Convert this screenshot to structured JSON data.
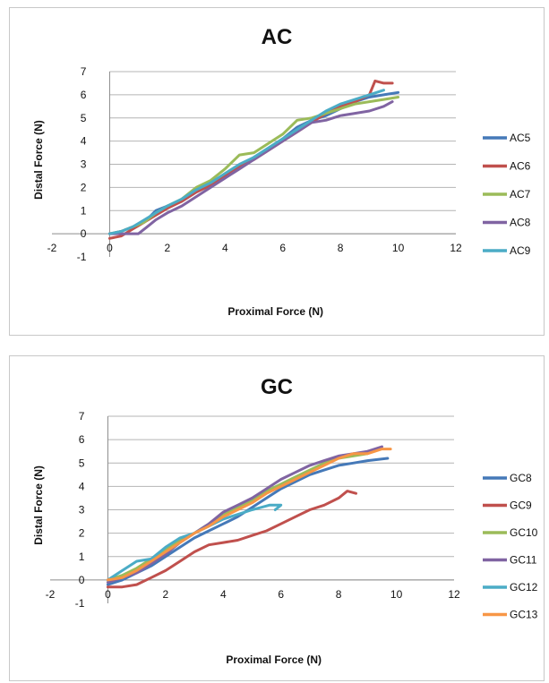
{
  "chart_data": [
    {
      "type": "line",
      "title": "AC",
      "xlabel": "Proximal Force (N)",
      "ylabel": "Distal Force (N)",
      "xlim": [
        -2,
        12
      ],
      "ylim": [
        -1,
        7
      ],
      "xticks": [
        -2,
        0,
        2,
        4,
        6,
        8,
        10,
        12
      ],
      "yticks": [
        -1,
        0,
        1,
        2,
        3,
        4,
        5,
        6,
        7
      ],
      "grid": true,
      "legend": "right",
      "series": [
        {
          "name": "AC5",
          "color": "#4579b8",
          "x": [
            0,
            0.4,
            0.8,
            1.2,
            1.6,
            2.0,
            2.5,
            3.0,
            3.5,
            4.0,
            4.5,
            5.0,
            5.5,
            6.0,
            6.5,
            7.0,
            7.5,
            8.0,
            8.5,
            9.0,
            9.5,
            10.0
          ],
          "y": [
            0,
            0.1,
            0.3,
            0.5,
            1.0,
            1.2,
            1.4,
            1.8,
            2.1,
            2.5,
            2.9,
            3.3,
            3.7,
            4.1,
            4.6,
            4.9,
            5.1,
            5.4,
            5.7,
            5.9,
            6.0,
            6.1
          ]
        },
        {
          "name": "AC6",
          "color": "#c0504d",
          "x": [
            0,
            0.4,
            0.8,
            1.2,
            1.6,
            2.0,
            2.5,
            3.0,
            3.5,
            4.0,
            4.5,
            5.0,
            5.5,
            6.0,
            6.5,
            7.0,
            7.5,
            8.0,
            8.5,
            9.0,
            9.2,
            9.5,
            9.8
          ],
          "y": [
            -0.2,
            -0.1,
            0.2,
            0.5,
            0.8,
            1.1,
            1.4,
            1.8,
            2.1,
            2.5,
            2.9,
            3.2,
            3.6,
            4.0,
            4.4,
            4.8,
            5.2,
            5.5,
            5.7,
            6.0,
            6.6,
            6.5,
            6.5
          ]
        },
        {
          "name": "AC7",
          "color": "#9bbb59",
          "x": [
            0,
            0.4,
            0.8,
            1.2,
            1.6,
            2.0,
            2.5,
            3.0,
            3.5,
            4.0,
            4.5,
            5.0,
            5.5,
            6.0,
            6.5,
            7.0,
            7.5,
            8.0,
            8.5,
            9.0,
            9.5,
            10.0
          ],
          "y": [
            0,
            0.1,
            0.3,
            0.5,
            0.9,
            1.2,
            1.5,
            2.0,
            2.3,
            2.8,
            3.4,
            3.5,
            3.9,
            4.3,
            4.9,
            5.0,
            5.2,
            5.4,
            5.6,
            5.7,
            5.8,
            5.9
          ]
        },
        {
          "name": "AC8",
          "color": "#8064a2",
          "x": [
            0,
            0.5,
            1.0,
            1.3,
            1.6,
            2.0,
            2.5,
            3.0,
            3.5,
            4.0,
            4.5,
            5.0,
            5.5,
            6.0,
            6.5,
            7.0,
            7.5,
            8.0,
            8.5,
            9.0,
            9.5,
            9.8
          ],
          "y": [
            0,
            0,
            0,
            0.3,
            0.6,
            0.9,
            1.2,
            1.6,
            2.0,
            2.4,
            2.8,
            3.2,
            3.6,
            4.0,
            4.4,
            4.8,
            4.9,
            5.1,
            5.2,
            5.3,
            5.5,
            5.7
          ]
        },
        {
          "name": "AC9",
          "color": "#4bacc6",
          "x": [
            0,
            0.4,
            0.8,
            1.2,
            1.6,
            2.0,
            2.5,
            3.0,
            3.5,
            4.0,
            4.5,
            5.0,
            5.5,
            6.0,
            6.5,
            7.0,
            7.5,
            8.0,
            8.5,
            9.0,
            9.5
          ],
          "y": [
            0,
            0.1,
            0.3,
            0.6,
            0.9,
            1.2,
            1.5,
            1.9,
            2.2,
            2.6,
            3.0,
            3.3,
            3.7,
            4.1,
            4.5,
            4.9,
            5.3,
            5.6,
            5.8,
            6.0,
            6.2
          ]
        }
      ]
    },
    {
      "type": "line",
      "title": "GC",
      "xlabel": "Proximal Force (N)",
      "ylabel": "Distal Force (N)",
      "xlim": [
        -2,
        12
      ],
      "ylim": [
        -1,
        7
      ],
      "xticks": [
        -2,
        0,
        2,
        4,
        6,
        8,
        10,
        12
      ],
      "yticks": [
        -1,
        0,
        1,
        2,
        3,
        4,
        5,
        6,
        7
      ],
      "grid": true,
      "legend": "right",
      "series": [
        {
          "name": "GC8",
          "color": "#4579b8",
          "x": [
            0,
            0.5,
            1.0,
            1.5,
            2.0,
            2.5,
            3.0,
            3.5,
            4.0,
            4.5,
            5.0,
            5.5,
            6.0,
            6.5,
            7.0,
            7.5,
            8.0,
            8.5,
            9.0,
            9.7
          ],
          "y": [
            -0.2,
            0,
            0.3,
            0.6,
            1.0,
            1.4,
            1.8,
            2.1,
            2.4,
            2.7,
            3.1,
            3.5,
            3.9,
            4.2,
            4.5,
            4.7,
            4.9,
            5.0,
            5.1,
            5.2
          ]
        },
        {
          "name": "GC9",
          "color": "#c0504d",
          "x": [
            0,
            0.5,
            1.0,
            1.5,
            2.0,
            2.5,
            3.0,
            3.5,
            4.0,
            4.5,
            5.0,
            5.5,
            6.0,
            6.5,
            7.0,
            7.5,
            8.0,
            8.3,
            8.6
          ],
          "y": [
            -0.3,
            -0.3,
            -0.2,
            0.1,
            0.4,
            0.8,
            1.2,
            1.5,
            1.6,
            1.7,
            1.9,
            2.1,
            2.4,
            2.7,
            3.0,
            3.2,
            3.5,
            3.8,
            3.7
          ]
        },
        {
          "name": "GC10",
          "color": "#9bbb59",
          "x": [
            0,
            0.5,
            1.0,
            1.5,
            2.0,
            2.5,
            3.0,
            3.5,
            4.0,
            4.5,
            5.0,
            5.5,
            6.0,
            6.5,
            7.0,
            7.5,
            8.0,
            8.5,
            9.0
          ],
          "y": [
            0,
            0.2,
            0.5,
            0.9,
            1.3,
            1.7,
            2.0,
            2.4,
            2.8,
            3.1,
            3.4,
            3.8,
            4.1,
            4.4,
            4.7,
            5.0,
            5.2,
            5.3,
            5.4
          ]
        },
        {
          "name": "GC11",
          "color": "#8064a2",
          "x": [
            0,
            0.5,
            1.0,
            1.5,
            2.0,
            2.5,
            3.0,
            3.5,
            4.0,
            4.5,
            5.0,
            5.5,
            6.0,
            6.5,
            7.0,
            7.5,
            8.0,
            8.5,
            9.0,
            9.5
          ],
          "y": [
            -0.1,
            0.1,
            0.3,
            0.7,
            1.1,
            1.6,
            2.0,
            2.4,
            2.9,
            3.2,
            3.5,
            3.9,
            4.3,
            4.6,
            4.9,
            5.1,
            5.3,
            5.4,
            5.5,
            5.7
          ]
        },
        {
          "name": "GC12",
          "color": "#4bacc6",
          "x": [
            0,
            0.5,
            1.0,
            1.5,
            2.0,
            2.5,
            3.0,
            3.5,
            4.0,
            4.5,
            5.0,
            5.3,
            5.6,
            6.0,
            5.8
          ],
          "y": [
            0,
            0.4,
            0.8,
            0.9,
            1.4,
            1.8,
            2.0,
            2.3,
            2.6,
            2.8,
            3.0,
            3.1,
            3.2,
            3.2,
            3.0
          ]
        },
        {
          "name": "GC13",
          "color": "#f79646",
          "x": [
            0,
            0.5,
            1.0,
            1.5,
            2.0,
            2.5,
            3.0,
            3.5,
            4.0,
            4.5,
            5.0,
            5.5,
            6.0,
            6.5,
            7.0,
            7.5,
            8.0,
            8.5,
            9.0,
            9.5,
            9.8
          ],
          "y": [
            0,
            0.1,
            0.4,
            0.8,
            1.2,
            1.6,
            2.0,
            2.3,
            2.7,
            3.0,
            3.3,
            3.7,
            4.0,
            4.3,
            4.6,
            4.9,
            5.2,
            5.4,
            5.4,
            5.6,
            5.6
          ]
        }
      ]
    }
  ]
}
